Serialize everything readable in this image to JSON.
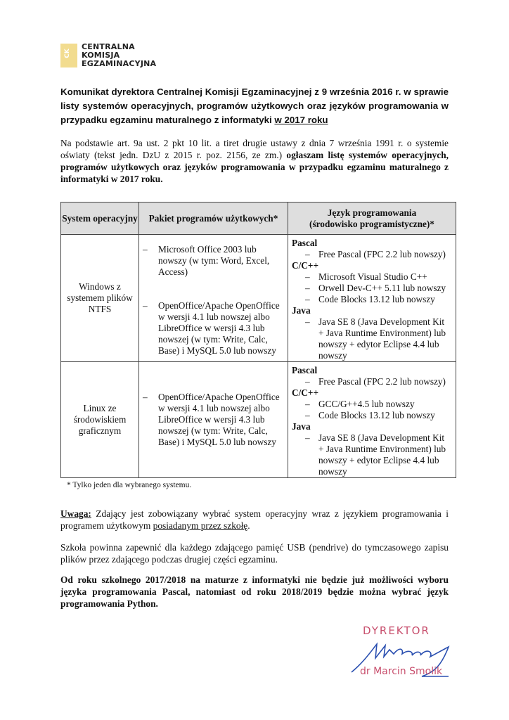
{
  "logo": {
    "mark": "CKE",
    "lines": [
      "CENTRALNA",
      "KOMISJA",
      "EGZAMINACYJNA"
    ]
  },
  "title": {
    "main": "Komunikat dyrektora Centralnej Komisji Egzaminacyjnej z 9 września 2016 r. w sprawie listy systemów operacyjnych, programów użytkowych oraz języków programowania w przypadku egzaminu maturalnego z informatyki ",
    "underlined": "w 2017 roku"
  },
  "intro": {
    "plain": "Na podstawie art. 9a ust. 2 pkt 10 lit. a tiret drugie ustawy z dnia 7 września 1991 r. o systemie oświaty (tekst jedn. DzU z 2015 r. poz. 2156, ze zm.) ",
    "bold": "ogłaszam listę systemów operacyjnych, programów użytkowych oraz języków programowania w przypadku egzaminu maturalnego z informatyki w 2017 roku."
  },
  "table": {
    "headers": [
      "System operacyjny",
      "Pakiet programów użytkowych*",
      "Język programowania (środowisko programistyczne)*"
    ],
    "rows": [
      {
        "system": "Windows z systemem plików NTFS",
        "packages": [
          "Microsoft Office 2003 lub nowszy (w tym: Word, Excel, Access)",
          "OpenOffice/Apache OpenOffice w wersji 4.1 lub nowszej albo LibreOffice w wersji 4.3 lub nowszej (w tym: Write, Calc, Base) i MySQL 5.0 lub nowszy"
        ],
        "languages": [
          {
            "name": "Pascal",
            "items": [
              "Free Pascal (FPC 2.2 lub nowszy)"
            ]
          },
          {
            "name": "C/C++",
            "items": [
              "Microsoft Visual Studio C++",
              "Orwell Dev-C++ 5.11 lub nowszy",
              "Code Blocks 13.12 lub nowszy"
            ]
          },
          {
            "name": "Java",
            "items": [
              "Java SE 8 (Java Development Kit + Java Runtime Environment) lub nowszy + edytor Eclipse 4.4 lub nowszy"
            ]
          }
        ]
      },
      {
        "system": "Linux ze środowiskiem graficznym",
        "packages": [
          "OpenOffice/Apache OpenOffice w wersji 4.1 lub nowszej albo LibreOffice w wersji 4.3 lub nowszej (w tym: Write, Calc, Base) i MySQL 5.0 lub nowszy"
        ],
        "languages": [
          {
            "name": "Pascal",
            "items": [
              "Free Pascal (FPC 2.2 lub nowszy)"
            ]
          },
          {
            "name": "C/C++",
            "items": [
              "GCC/G++4.5 lub nowszy",
              "Code Blocks 13.12 lub nowszy"
            ]
          },
          {
            "name": "Java",
            "items": [
              "Java SE 8 (Java Development Kit + Java Runtime Environment) lub nowszy + edytor Eclipse 4.4 lub nowszy"
            ]
          }
        ]
      }
    ]
  },
  "footnote": "* Tylko jeden dla wybranego systemu.",
  "note": {
    "label": "Uwaga:",
    "text": " Zdający jest zobowiązany wybrać system operacyjny wraz z językiem programowania i programem użytkowym ",
    "underlined": "posiadanym przez szkołę",
    "end": "."
  },
  "usb": "Szkoła powinna zapewnić dla każdego zdającego pamięć USB (pendrive) do tymczasowego zapisu plików przez zdającego podczas drugiej części egzaminu.",
  "final": "Od roku szkolnego 2017/2018 na maturze z informatyki nie będzie już możliwości wyboru języka programowania Pascal, natomiast od roku 2018/2019 będzie można wybrać język programowania Python.",
  "signature": {
    "role": "DYREKTOR",
    "name": "dr Marcin Smolik"
  },
  "colors": {
    "logo": "#f2dc8f",
    "stamp": "#c8506e",
    "ink": "#2a4fb0",
    "header_bg": "#dedede"
  }
}
